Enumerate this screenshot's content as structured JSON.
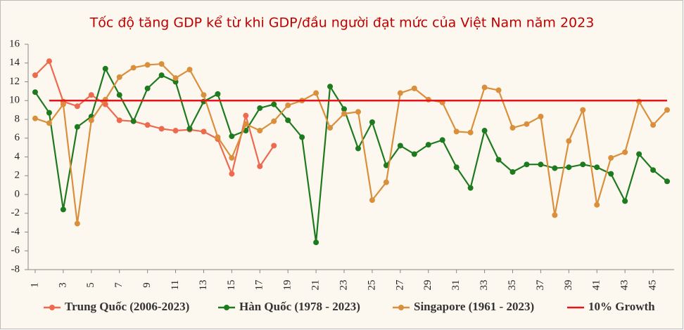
{
  "chart_data": {
    "type": "line",
    "title": "Tốc độ tăng GDP kể từ khi GDP/đầu người đạt mức của Việt Nam năm 2023",
    "x": [
      1,
      2,
      3,
      4,
      5,
      6,
      7,
      8,
      9,
      10,
      11,
      12,
      13,
      14,
      15,
      16,
      17,
      18,
      19,
      20,
      21,
      22,
      23,
      24,
      25,
      26,
      27,
      28,
      29,
      30,
      31,
      32,
      33,
      34,
      35,
      36,
      37,
      38,
      39,
      40,
      41,
      42,
      43,
      44,
      45,
      46
    ],
    "xlim": [
      0.5,
      46.5
    ],
    "xticks": [
      1,
      3,
      5,
      7,
      9,
      11,
      13,
      15,
      17,
      19,
      21,
      23,
      25,
      27,
      29,
      31,
      33,
      35,
      37,
      39,
      41,
      43,
      45
    ],
    "ylim": [
      -8,
      16
    ],
    "yticks": [
      -8,
      -6,
      -4,
      -2,
      0,
      2,
      4,
      6,
      8,
      10,
      12,
      14,
      16
    ],
    "grid": false,
    "legend": "bottom",
    "series": [
      {
        "name": "Trung Quốc (2006-2023)",
        "color": "#ee6a4f",
        "marker": true,
        "values": [
          12.7,
          14.2,
          9.9,
          9.4,
          10.6,
          9.6,
          7.9,
          7.8,
          7.4,
          7.0,
          6.8,
          6.9,
          6.7,
          5.9,
          2.2,
          8.4,
          3.0,
          5.2,
          null,
          null,
          null,
          null,
          null,
          null,
          null,
          null,
          null,
          null,
          null,
          null,
          null,
          null,
          null,
          null,
          null,
          null,
          null,
          null,
          null,
          null,
          null,
          null,
          null,
          null,
          null,
          null
        ]
      },
      {
        "name": "Hàn Quốc (1978 - 2023)",
        "color": "#1e7a1e",
        "marker": true,
        "values": [
          10.9,
          8.7,
          -1.6,
          7.2,
          8.3,
          13.4,
          10.6,
          7.8,
          11.3,
          12.7,
          12.0,
          7.0,
          9.9,
          10.7,
          6.2,
          6.8,
          9.2,
          9.6,
          7.9,
          6.1,
          -5.1,
          11.5,
          9.1,
          4.9,
          7.7,
          3.1,
          5.2,
          4.3,
          5.3,
          5.8,
          2.9,
          0.7,
          6.8,
          3.7,
          2.4,
          3.2,
          3.2,
          2.8,
          2.9,
          3.2,
          2.9,
          2.2,
          -0.7,
          4.3,
          2.6,
          1.4
        ]
      },
      {
        "name": "Singapore (1961 - 2023)",
        "color": "#d98f3c",
        "marker": true,
        "values": [
          8.1,
          7.6,
          9.6,
          -3.1,
          7.9,
          10.1,
          12.5,
          13.5,
          13.8,
          13.9,
          12.4,
          13.3,
          10.6,
          6.1,
          3.9,
          7.5,
          6.8,
          7.8,
          9.5,
          10.0,
          10.8,
          7.1,
          8.6,
          8.8,
          -0.6,
          1.3,
          10.8,
          11.3,
          10.1,
          9.8,
          6.7,
          6.6,
          11.4,
          11.1,
          7.1,
          7.5,
          8.3,
          -2.2,
          5.7,
          9.0,
          -1.1,
          3.9,
          4.5,
          9.9,
          7.4,
          9.0
        ]
      },
      {
        "name": "10%  Growth",
        "color": "#e8141a",
        "marker": false,
        "values": [
          null,
          10,
          10,
          10,
          10,
          10,
          10,
          10,
          10,
          10,
          10,
          10,
          10,
          10,
          10,
          10,
          10,
          10,
          10,
          10,
          10,
          10,
          10,
          10,
          10,
          10,
          10,
          10,
          10,
          10,
          10,
          10,
          10,
          10,
          10,
          10,
          10,
          10,
          10,
          10,
          10,
          10,
          10,
          10,
          10,
          10
        ]
      }
    ]
  }
}
